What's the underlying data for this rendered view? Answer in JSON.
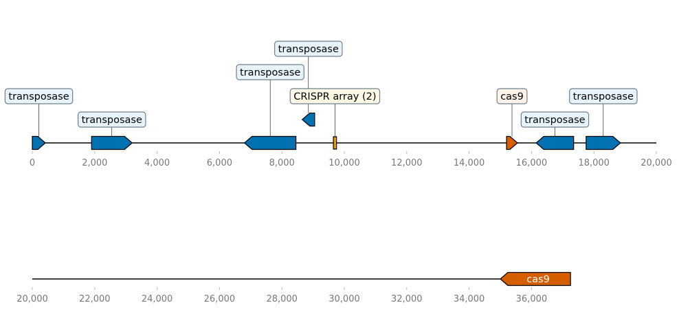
{
  "colors": {
    "blue": "#0072b2",
    "orange": "#d55e00",
    "crispr": "#e69f00",
    "box_blue": "#e8f4fc",
    "box_orange": "#fdf3e8",
    "box_crispr": "#fef8e6",
    "box_border": "#6e7f8a",
    "tick_text": "#777777"
  },
  "tracks": [
    {
      "range": [
        0,
        20000
      ],
      "ticks": [
        "0",
        "2,000",
        "4,000",
        "6,000",
        "8,000",
        "10,000",
        "12,000",
        "14,000",
        "16,000",
        "18,000",
        "20,000"
      ],
      "features": [
        {
          "start": 0,
          "end": 420,
          "strand": 1,
          "level": 0,
          "kind": "gene",
          "color": "blue",
          "label": "transposase",
          "label_level": 1,
          "box": "box_blue"
        },
        {
          "start": 1900,
          "end": 3200,
          "strand": 1,
          "level": 0,
          "kind": "gene",
          "color": "blue",
          "label": "transposase",
          "label_level": 0,
          "box": "box_blue"
        },
        {
          "start": 6800,
          "end": 8450,
          "strand": -1,
          "level": 0,
          "kind": "gene",
          "color": "blue",
          "label": "transposase",
          "label_level": 2,
          "box": "box_blue"
        },
        {
          "start": 8650,
          "end": 9050,
          "strand": -1,
          "level": 1,
          "kind": "gene",
          "color": "blue",
          "label": "transposase",
          "label_level": 3,
          "box": "box_blue"
        },
        {
          "start": 9650,
          "end": 9750,
          "strand": 0,
          "level": 0,
          "kind": "crispr",
          "color": "crispr",
          "label": "CRISPR array (2)",
          "label_level": 1,
          "box": "box_crispr"
        },
        {
          "start": 15200,
          "end": 15550,
          "strand": 1,
          "level": 0,
          "kind": "gene",
          "color": "orange",
          "label": "cas9",
          "label_level": 1,
          "box": "box_orange"
        },
        {
          "start": 16150,
          "end": 17350,
          "strand": -1,
          "level": 0,
          "kind": "gene",
          "color": "blue",
          "label": "transposase",
          "label_level": 0,
          "box": "box_blue"
        },
        {
          "start": 17750,
          "end": 18850,
          "strand": 1,
          "level": 0,
          "kind": "gene",
          "color": "blue",
          "label": "transposase",
          "label_level": 1,
          "box": "box_blue"
        }
      ]
    },
    {
      "range": [
        20000,
        40000
      ],
      "ticks": [
        "20,000",
        "22,000",
        "24,000",
        "26,000",
        "28,000",
        "30,000",
        "32,000",
        "34,000",
        "36,000"
      ],
      "features": [
        {
          "start": 35000,
          "end": 37250,
          "strand": -1,
          "level": 0,
          "kind": "gene",
          "color": "orange",
          "label": "cas9",
          "label_inside": true
        }
      ]
    }
  ]
}
